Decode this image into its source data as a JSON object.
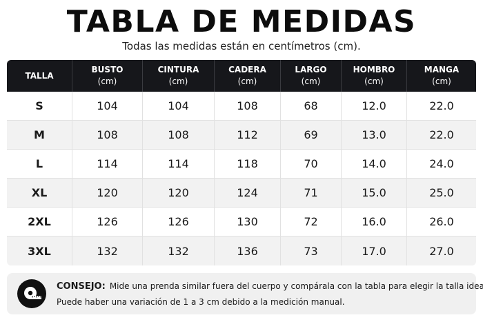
{
  "header": {
    "title": "TABLA DE MEDIDAS",
    "subtitle": "Todas las medidas están en centímetros (cm)."
  },
  "table": {
    "columns": [
      {
        "label": "TALLA",
        "unit": ""
      },
      {
        "label": "BUSTO",
        "unit": "(cm)"
      },
      {
        "label": "CINTURA",
        "unit": "(cm)"
      },
      {
        "label": "CADERA",
        "unit": "(cm)"
      },
      {
        "label": "LARGO",
        "unit": "(cm)"
      },
      {
        "label": "HOMBRO",
        "unit": "(cm)"
      },
      {
        "label": "MANGA",
        "unit": "(cm)"
      }
    ],
    "rows": [
      [
        "S",
        "104",
        "104",
        "108",
        "68",
        "12.0",
        "22.0"
      ],
      [
        "M",
        "108",
        "108",
        "112",
        "69",
        "13.0",
        "22.0"
      ],
      [
        "L",
        "114",
        "114",
        "118",
        "70",
        "14.0",
        "24.0"
      ],
      [
        "XL",
        "120",
        "120",
        "124",
        "71",
        "15.0",
        "25.0"
      ],
      [
        "2XL",
        "126",
        "126",
        "130",
        "72",
        "16.0",
        "26.0"
      ],
      [
        "3XL",
        "132",
        "132",
        "136",
        "73",
        "17.0",
        "27.0"
      ]
    ]
  },
  "tip": {
    "icon": "measuring-tape-icon",
    "label": "CONSEJO:",
    "line1": "Mide una prenda similar fuera del cuerpo y compárala con la tabla para elegir la talla ideal.",
    "line2": "Puede haber una variación de 1 a 3 cm debido a la medición manual."
  },
  "colors": {
    "header_bg": "#16171b",
    "row_alt": "#f2f2f2",
    "tip_bg": "#f0f0f0"
  }
}
